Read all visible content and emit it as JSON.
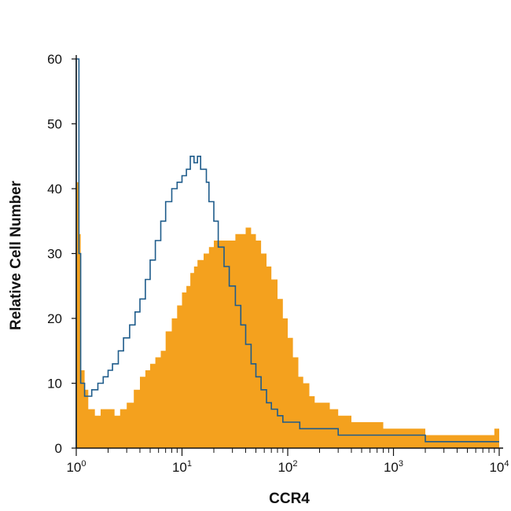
{
  "chart_data": {
    "type": "histogram",
    "xlabel": "CCR4",
    "ylabel": "Relative Cell Number",
    "x_scale": "log",
    "xlim": [
      1,
      10000
    ],
    "ylim": [
      0,
      60
    ],
    "x_ticks": [
      {
        "value": 1,
        "base": "10",
        "exp": "0"
      },
      {
        "value": 10,
        "base": "10",
        "exp": "1"
      },
      {
        "value": 100,
        "base": "10",
        "exp": "2"
      },
      {
        "value": 1000,
        "base": "10",
        "exp": "3"
      },
      {
        "value": 10000,
        "base": "10",
        "exp": "4"
      }
    ],
    "y_ticks": [
      "0",
      "10",
      "20",
      "30",
      "40",
      "50",
      "60"
    ],
    "grid": false,
    "colors": {
      "filled": "#F4A11E",
      "outline": "#1F5C8B",
      "axis": "#111111"
    },
    "series": [
      {
        "style": "filled",
        "points": [
          [
            1.0,
            41
          ],
          [
            1.05,
            33
          ],
          [
            1.1,
            12
          ],
          [
            1.2,
            9
          ],
          [
            1.3,
            6
          ],
          [
            1.5,
            5
          ],
          [
            1.7,
            6
          ],
          [
            2.0,
            6
          ],
          [
            2.3,
            5
          ],
          [
            2.6,
            6
          ],
          [
            3.0,
            7
          ],
          [
            3.5,
            9
          ],
          [
            4.0,
            11
          ],
          [
            4.5,
            12
          ],
          [
            5.0,
            13
          ],
          [
            5.6,
            14
          ],
          [
            6.3,
            15
          ],
          [
            7.0,
            18
          ],
          [
            8.0,
            20
          ],
          [
            9.0,
            22
          ],
          [
            10,
            24
          ],
          [
            11,
            25
          ],
          [
            12,
            27
          ],
          [
            13,
            28
          ],
          [
            14,
            29
          ],
          [
            16,
            30
          ],
          [
            18,
            31
          ],
          [
            20,
            32
          ],
          [
            22,
            32
          ],
          [
            25,
            32
          ],
          [
            28,
            32
          ],
          [
            32,
            33
          ],
          [
            36,
            33
          ],
          [
            40,
            34
          ],
          [
            45,
            33
          ],
          [
            50,
            32
          ],
          [
            56,
            30
          ],
          [
            63,
            28
          ],
          [
            70,
            26
          ],
          [
            80,
            23
          ],
          [
            90,
            20
          ],
          [
            100,
            17
          ],
          [
            112,
            14
          ],
          [
            126,
            11
          ],
          [
            140,
            10
          ],
          [
            160,
            8
          ],
          [
            180,
            7
          ],
          [
            200,
            7
          ],
          [
            250,
            6
          ],
          [
            300,
            5
          ],
          [
            350,
            5
          ],
          [
            400,
            4
          ],
          [
            500,
            4
          ],
          [
            630,
            4
          ],
          [
            800,
            3
          ],
          [
            1000,
            3
          ],
          [
            1500,
            3
          ],
          [
            2000,
            2
          ],
          [
            3000,
            2
          ],
          [
            4000,
            2
          ],
          [
            6000,
            2
          ],
          [
            8000,
            2
          ],
          [
            9000,
            3
          ],
          [
            10000,
            3
          ]
        ]
      },
      {
        "style": "outline",
        "points": [
          [
            1.0,
            60
          ],
          [
            1.03,
            60
          ],
          [
            1.06,
            30
          ],
          [
            1.1,
            10
          ],
          [
            1.2,
            8
          ],
          [
            1.4,
            9
          ],
          [
            1.6,
            10
          ],
          [
            1.8,
            11
          ],
          [
            2.0,
            12
          ],
          [
            2.2,
            13
          ],
          [
            2.5,
            15
          ],
          [
            2.8,
            17
          ],
          [
            3.2,
            19
          ],
          [
            3.6,
            21
          ],
          [
            4.0,
            23
          ],
          [
            4.5,
            26
          ],
          [
            5.0,
            29
          ],
          [
            5.6,
            32
          ],
          [
            6.3,
            35
          ],
          [
            7.0,
            38
          ],
          [
            8.0,
            40
          ],
          [
            9.0,
            41
          ],
          [
            10,
            42
          ],
          [
            11,
            43
          ],
          [
            12,
            45
          ],
          [
            13,
            44
          ],
          [
            14,
            45
          ],
          [
            15,
            43
          ],
          [
            16,
            43
          ],
          [
            17,
            41
          ],
          [
            18,
            38
          ],
          [
            20,
            35
          ],
          [
            22,
            31
          ],
          [
            25,
            28
          ],
          [
            28,
            25
          ],
          [
            32,
            22
          ],
          [
            36,
            19
          ],
          [
            40,
            16
          ],
          [
            45,
            13
          ],
          [
            50,
            11
          ],
          [
            56,
            9
          ],
          [
            63,
            7
          ],
          [
            70,
            6
          ],
          [
            80,
            5
          ],
          [
            90,
            4
          ],
          [
            100,
            4
          ],
          [
            130,
            3
          ],
          [
            160,
            3
          ],
          [
            200,
            3
          ],
          [
            300,
            2
          ],
          [
            500,
            2
          ],
          [
            800,
            2
          ],
          [
            1000,
            2
          ],
          [
            2000,
            1
          ],
          [
            4000,
            1
          ],
          [
            8000,
            1
          ],
          [
            10000,
            1
          ]
        ]
      }
    ]
  }
}
